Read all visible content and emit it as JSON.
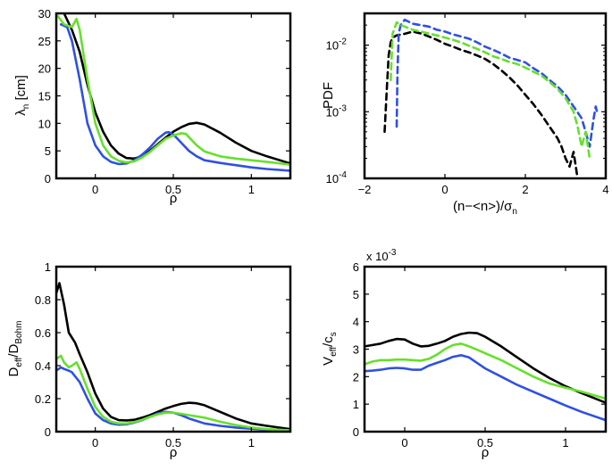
{
  "figure_title": "",
  "colors": {
    "black": "#000000",
    "blue": "#3050e0",
    "green": "#66e02c"
  },
  "chart_data": [
    {
      "id": "lambda",
      "type": "line",
      "title": "",
      "xlabel": "ρ",
      "ylabel_main": "λ",
      "ylabel_sub": "n",
      "ylabel_tail": " [cm]",
      "xlim": [
        -0.25,
        1.25
      ],
      "ylim": [
        0,
        30
      ],
      "xticks": [
        0,
        0.5,
        1
      ],
      "xticklabels": [
        "0",
        "0.5",
        "1"
      ],
      "yticks": [
        0,
        5,
        10,
        15,
        20,
        25,
        30
      ],
      "yticklabels": [
        "0",
        "5",
        "10",
        "15",
        "20",
        "25",
        "30"
      ],
      "yscale": "linear",
      "series": [
        {
          "name": "black",
          "color": "#000000",
          "dashed": false,
          "x": [
            -0.2,
            -0.15,
            -0.1,
            -0.05,
            0.0,
            0.05,
            0.1,
            0.15,
            0.2,
            0.25,
            0.3,
            0.35,
            0.4,
            0.45,
            0.5,
            0.55,
            0.6,
            0.65,
            0.7,
            0.8,
            0.9,
            1.0,
            1.1,
            1.25
          ],
          "y": [
            30,
            27,
            23,
            17,
            12,
            8.5,
            6,
            4.5,
            3.7,
            3.6,
            4,
            5,
            6.2,
            7.4,
            8.5,
            9.3,
            9.9,
            10.1,
            9.8,
            8.3,
            6.5,
            5,
            4,
            2.7
          ]
        },
        {
          "name": "blue",
          "color": "#3050e0",
          "dashed": false,
          "x": [
            -0.22,
            -0.18,
            -0.15,
            -0.1,
            -0.05,
            0.0,
            0.05,
            0.1,
            0.15,
            0.2,
            0.25,
            0.3,
            0.35,
            0.4,
            0.45,
            0.47,
            0.5,
            0.55,
            0.6,
            0.65,
            0.7,
            0.8,
            0.9,
            1.0,
            1.1,
            1.25
          ],
          "y": [
            28,
            27.5,
            25,
            18,
            10,
            6,
            4,
            3,
            2.6,
            2.7,
            3.3,
            4.3,
            5.6,
            7.2,
            8.3,
            8.4,
            8,
            6.5,
            5,
            4,
            3.3,
            2.8,
            2.4,
            2.0,
            1.7,
            1.4
          ]
        },
        {
          "name": "green",
          "color": "#66e02c",
          "dashed": false,
          "x": [
            -0.24,
            -0.2,
            -0.15,
            -0.12,
            -0.1,
            -0.05,
            0.0,
            0.05,
            0.1,
            0.15,
            0.2,
            0.25,
            0.3,
            0.35,
            0.4,
            0.45,
            0.5,
            0.55,
            0.58,
            0.6,
            0.65,
            0.7,
            0.8,
            0.9,
            1.0,
            1.1,
            1.25
          ],
          "y": [
            29.5,
            28,
            27.5,
            29,
            27,
            18,
            10,
            6,
            4,
            3.2,
            2.9,
            3.1,
            3.8,
            4.8,
            6,
            7.2,
            7.8,
            8.2,
            8.1,
            7.5,
            6,
            4.9,
            4,
            3.6,
            3.3,
            3.0,
            2.5
          ]
        }
      ]
    },
    {
      "id": "pdf",
      "type": "line",
      "title": "",
      "xlabel_main": "(n−<n>)/σ",
      "xlabel_sub": "n",
      "ylabel": "PDF",
      "xlim": [
        -2,
        4
      ],
      "ylim": [
        0.0001,
        0.03
      ],
      "xticks": [
        -2,
        0,
        2,
        4
      ],
      "xticklabels": [
        "−2",
        "0",
        "2",
        "4"
      ],
      "yticks": [
        0.0001,
        0.001,
        0.01
      ],
      "yticklabels": [
        "10",
        "10",
        "10"
      ],
      "ytick_exponents": [
        "-4",
        "-3",
        "-2"
      ],
      "yscale": "log",
      "series": [
        {
          "name": "black",
          "color": "#000000",
          "dashed": true,
          "x": [
            -1.5,
            -1.45,
            -1.4,
            -1.35,
            -1.3,
            -1.2,
            -1.0,
            -0.8,
            -0.6,
            -0.4,
            -0.2,
            0.0,
            0.2,
            0.4,
            0.6,
            0.8,
            1.0,
            1.2,
            1.4,
            1.6,
            1.8,
            2.0,
            2.2,
            2.4,
            2.6,
            2.8,
            2.9,
            3.0,
            3.1,
            3.2,
            3.3
          ],
          "y": [
            0.0005,
            0.002,
            0.007,
            0.011,
            0.013,
            0.014,
            0.0148,
            0.016,
            0.015,
            0.0135,
            0.012,
            0.0105,
            0.0095,
            0.0085,
            0.0078,
            0.007,
            0.0062,
            0.0052,
            0.0042,
            0.0033,
            0.0025,
            0.0018,
            0.0013,
            0.0009,
            0.0006,
            0.0004,
            0.0003,
            0.0002,
            0.00015,
            0.00025,
            0.0001
          ]
        },
        {
          "name": "blue",
          "color": "#3050e0",
          "dashed": true,
          "x": [
            -1.2,
            -1.18,
            -1.15,
            -1.1,
            -1.0,
            -0.8,
            -0.6,
            -0.4,
            -0.2,
            0.0,
            0.2,
            0.4,
            0.6,
            0.8,
            1.0,
            1.2,
            1.4,
            1.6,
            1.8,
            2.0,
            2.2,
            2.4,
            2.6,
            2.8,
            3.0,
            3.2,
            3.4,
            3.5,
            3.6,
            3.7,
            3.75,
            3.8
          ],
          "y": [
            0.0006,
            0.004,
            0.015,
            0.02,
            0.024,
            0.021,
            0.02,
            0.019,
            0.017,
            0.016,
            0.0145,
            0.0135,
            0.0125,
            0.011,
            0.0095,
            0.0085,
            0.0075,
            0.0065,
            0.006,
            0.0055,
            0.0045,
            0.0038,
            0.003,
            0.0024,
            0.0018,
            0.0012,
            0.0008,
            0.0005,
            0.0003,
            0.0008,
            0.0012,
            0.0009
          ]
        },
        {
          "name": "green",
          "color": "#66e02c",
          "dashed": true,
          "x": [
            -1.35,
            -1.3,
            -1.2,
            -1.1,
            -1.0,
            -0.8,
            -0.6,
            -0.4,
            -0.2,
            0.0,
            0.2,
            0.4,
            0.6,
            0.8,
            1.0,
            1.2,
            1.4,
            1.6,
            1.8,
            2.0,
            2.2,
            2.4,
            2.6,
            2.8,
            3.0,
            3.2,
            3.3,
            3.4,
            3.5,
            3.6
          ],
          "y": [
            0.003,
            0.015,
            0.022,
            0.02,
            0.019,
            0.017,
            0.016,
            0.015,
            0.014,
            0.013,
            0.012,
            0.011,
            0.0098,
            0.0088,
            0.0078,
            0.0068,
            0.0062,
            0.0056,
            0.0052,
            0.0046,
            0.004,
            0.0035,
            0.0028,
            0.0022,
            0.0016,
            0.001,
            0.0006,
            0.0003,
            0.0005,
            0.0002
          ]
        }
      ]
    },
    {
      "id": "deff",
      "type": "line",
      "title": "",
      "xlabel": "ρ",
      "ylabel_main": "D",
      "ylabel_sub": "eff",
      "ylabel_mid": "/D",
      "ylabel_sub2": "Bohm",
      "xlim": [
        -0.25,
        1.25
      ],
      "ylim": [
        0,
        1
      ],
      "xticks": [
        0,
        0.5,
        1
      ],
      "xticklabels": [
        "0",
        "0.5",
        "1"
      ],
      "yticks": [
        0,
        0.2,
        0.4,
        0.6,
        0.8,
        1
      ],
      "yticklabels": [
        "0",
        "0.2",
        "0.4",
        "0.6",
        "0.8",
        "1"
      ],
      "yscale": "linear",
      "series": [
        {
          "name": "black",
          "color": "#000000",
          "dashed": false,
          "x": [
            -0.25,
            -0.23,
            -0.2,
            -0.17,
            -0.13,
            -0.1,
            -0.05,
            0.0,
            0.05,
            0.1,
            0.15,
            0.2,
            0.25,
            0.3,
            0.35,
            0.4,
            0.45,
            0.5,
            0.55,
            0.6,
            0.65,
            0.7,
            0.8,
            0.9,
            1.0,
            1.1,
            1.25
          ],
          "y": [
            0.84,
            0.9,
            0.77,
            0.6,
            0.54,
            0.47,
            0.36,
            0.23,
            0.14,
            0.09,
            0.07,
            0.068,
            0.072,
            0.085,
            0.1,
            0.12,
            0.14,
            0.155,
            0.168,
            0.175,
            0.172,
            0.16,
            0.12,
            0.08,
            0.05,
            0.035,
            0.015
          ]
        },
        {
          "name": "blue",
          "color": "#3050e0",
          "dashed": false,
          "x": [
            -0.25,
            -0.22,
            -0.2,
            -0.17,
            -0.15,
            -0.1,
            -0.05,
            0.0,
            0.05,
            0.1,
            0.15,
            0.2,
            0.25,
            0.3,
            0.35,
            0.4,
            0.45,
            0.5,
            0.55,
            0.6,
            0.7,
            0.8,
            0.9,
            1.0,
            1.1,
            1.25
          ],
          "y": [
            0.37,
            0.39,
            0.38,
            0.37,
            0.36,
            0.3,
            0.2,
            0.11,
            0.07,
            0.05,
            0.042,
            0.045,
            0.055,
            0.07,
            0.09,
            0.11,
            0.12,
            0.115,
            0.1,
            0.08,
            0.05,
            0.035,
            0.025,
            0.018,
            0.012,
            0.006
          ]
        },
        {
          "name": "green",
          "color": "#66e02c",
          "dashed": false,
          "x": [
            -0.25,
            -0.22,
            -0.2,
            -0.17,
            -0.15,
            -0.12,
            -0.1,
            -0.05,
            0.0,
            0.05,
            0.1,
            0.15,
            0.2,
            0.25,
            0.3,
            0.35,
            0.4,
            0.45,
            0.5,
            0.55,
            0.6,
            0.7,
            0.8,
            0.9,
            1.0,
            1.1,
            1.25
          ],
          "y": [
            0.44,
            0.46,
            0.42,
            0.39,
            0.4,
            0.42,
            0.38,
            0.26,
            0.15,
            0.09,
            0.06,
            0.05,
            0.05,
            0.058,
            0.072,
            0.09,
            0.105,
            0.115,
            0.115,
            0.108,
            0.1,
            0.085,
            0.06,
            0.04,
            0.025,
            0.015,
            0.008
          ]
        }
      ]
    },
    {
      "id": "veff",
      "type": "line",
      "title": "",
      "xlabel": "ρ",
      "ylabel_main": "V",
      "ylabel_sub": "eff",
      "ylabel_mid": "/c",
      "ylabel_sub2": "s",
      "scale_note": "x 10",
      "scale_exp": "-3",
      "xlim": [
        -0.25,
        1.25
      ],
      "ylim": [
        0,
        6
      ],
      "xticks": [
        0,
        0.5,
        1
      ],
      "xticklabels": [
        "0",
        "0.5",
        "1"
      ],
      "yticks": [
        0,
        1,
        2,
        3,
        4,
        5,
        6
      ],
      "yticklabels": [
        "0",
        "1",
        "2",
        "3",
        "4",
        "5",
        "6"
      ],
      "yscale": "linear",
      "series": [
        {
          "name": "black",
          "color": "#000000",
          "dashed": false,
          "x": [
            -0.25,
            -0.2,
            -0.15,
            -0.1,
            -0.05,
            0.0,
            0.05,
            0.1,
            0.15,
            0.2,
            0.25,
            0.3,
            0.35,
            0.4,
            0.45,
            0.5,
            0.6,
            0.7,
            0.8,
            0.9,
            1.0,
            1.1,
            1.25
          ],
          "y": [
            3.1,
            3.15,
            3.2,
            3.3,
            3.37,
            3.35,
            3.2,
            3.1,
            3.12,
            3.2,
            3.3,
            3.45,
            3.55,
            3.6,
            3.58,
            3.45,
            3.1,
            2.7,
            2.3,
            1.95,
            1.65,
            1.4,
            1.05
          ]
        },
        {
          "name": "green",
          "color": "#66e02c",
          "dashed": false,
          "x": [
            -0.25,
            -0.2,
            -0.15,
            -0.1,
            -0.05,
            0.0,
            0.05,
            0.1,
            0.15,
            0.2,
            0.25,
            0.3,
            0.35,
            0.4,
            0.45,
            0.5,
            0.6,
            0.7,
            0.8,
            0.9,
            1.0,
            1.1,
            1.25
          ],
          "y": [
            2.45,
            2.55,
            2.6,
            2.6,
            2.62,
            2.62,
            2.6,
            2.58,
            2.65,
            2.8,
            3.0,
            3.15,
            3.2,
            3.1,
            2.98,
            2.85,
            2.6,
            2.3,
            2.0,
            1.75,
            1.6,
            1.45,
            1.2
          ]
        },
        {
          "name": "blue",
          "color": "#3050e0",
          "dashed": false,
          "x": [
            -0.25,
            -0.2,
            -0.15,
            -0.1,
            -0.05,
            0.0,
            0.05,
            0.1,
            0.15,
            0.2,
            0.25,
            0.3,
            0.35,
            0.4,
            0.45,
            0.5,
            0.6,
            0.7,
            0.8,
            0.9,
            1.0,
            1.1,
            1.25
          ],
          "y": [
            2.2,
            2.22,
            2.25,
            2.3,
            2.32,
            2.3,
            2.25,
            2.25,
            2.4,
            2.5,
            2.6,
            2.72,
            2.78,
            2.7,
            2.5,
            2.3,
            2.0,
            1.7,
            1.45,
            1.2,
            0.95,
            0.72,
            0.42
          ]
        }
      ]
    }
  ]
}
